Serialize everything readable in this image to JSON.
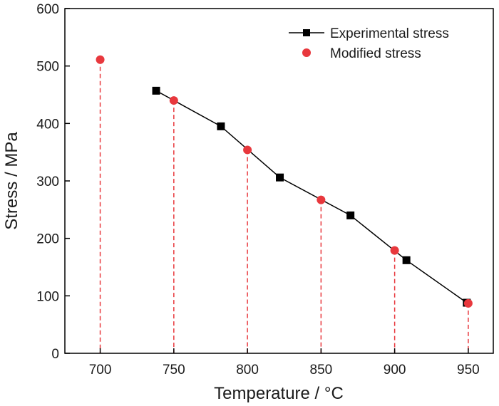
{
  "chart_data": {
    "type": "scatter",
    "xlabel": "Temperature / °C",
    "ylabel": "Stress / MPa",
    "xlim": [
      676,
      967
    ],
    "ylim": [
      0,
      600
    ],
    "x_ticks": [
      700,
      750,
      800,
      850,
      900,
      950
    ],
    "y_ticks": [
      0,
      100,
      200,
      300,
      400,
      500,
      600
    ],
    "grid": false,
    "legend_position": "top-right",
    "series": [
      {
        "name": "Experimental stress",
        "style": "line-square",
        "color": "#000000",
        "x": [
          738,
          782,
          822,
          870,
          908,
          949
        ],
        "y": [
          457,
          395,
          306,
          240,
          162,
          88
        ]
      },
      {
        "name": "Modified stress",
        "style": "circle-droplines",
        "color": "#e8383d",
        "x": [
          700,
          750,
          800,
          850,
          900,
          950
        ],
        "y": [
          511,
          440,
          354,
          267,
          179,
          87
        ]
      }
    ]
  }
}
